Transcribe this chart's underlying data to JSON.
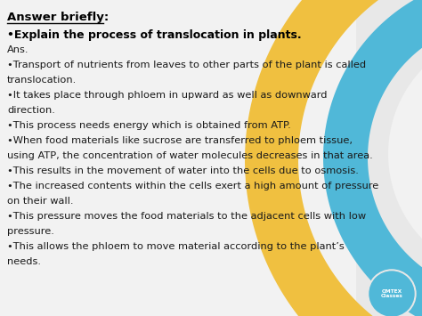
{
  "bg_color": "#e8e8e8",
  "panel_color": "#f2f2f2",
  "title_line": "Answer briefly:",
  "question_line": "•Explain the process of translocation in plants.",
  "ans_line": "Ans.",
  "body_lines": [
    "•Transport of nutrients from leaves to other parts of the plant is called",
    "translocation.",
    "•It takes place through phloem in upward as well as downward",
    "direction.",
    "•This process needs energy which is obtained from ATP.",
    "•When food materials like sucrose are transferred to phloem tissue,",
    "using ATP, the concentration of water molecules decreases in that area.",
    "•This results in the movement of water into the cells due to osmosis.",
    "•The increased contents within the cells exert a high amount of pressure",
    "on their wall.",
    "•This pressure moves the food materials to the adjacent cells with low",
    "pressure.",
    "•This allows the phloem to move material according to the plant’s",
    "needs."
  ],
  "text_color": "#1a1a1a",
  "title_color": "#000000",
  "question_color": "#000000",
  "yellow_color": "#f0c040",
  "blue_color": "#50b8d8",
  "white_color": "#f2f2f2"
}
